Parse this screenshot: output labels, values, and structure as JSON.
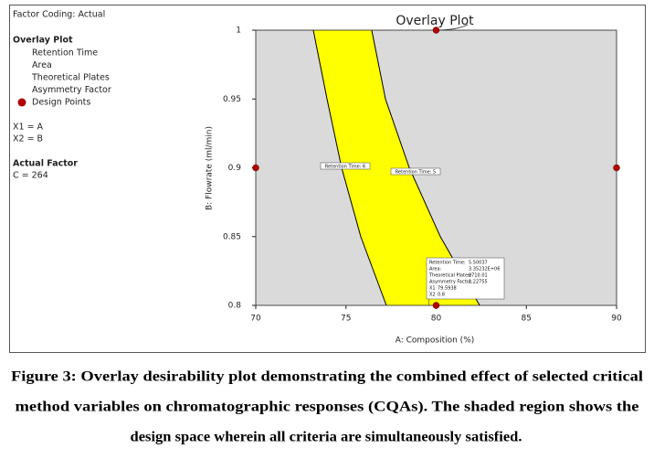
{
  "chart_data": {
    "type": "overlay",
    "title": "Overlay Plot",
    "factor_coding": "Factor Coding: Actual",
    "legend": {
      "title": "Overlay Plot",
      "items": [
        "Retention Time",
        "Area",
        "Theoretical Plates",
        "Asymmetry Factor"
      ]
    },
    "factor_names": [
      "X1 = A",
      "X2 = B"
    ],
    "actual_factor": {
      "title": "Actual Factor",
      "text": "C = 264"
    },
    "xlabel": "A: Composition (%)",
    "ylabel": "B: Flowrate (ml/min)",
    "xlim": [
      70,
      90
    ],
    "ylim": [
      0.8,
      1
    ],
    "xticks": [
      70,
      75,
      80,
      85,
      90
    ],
    "yticks": [
      0.8,
      0.85,
      0.9,
      0.95,
      1
    ],
    "background_color": "#dadada",
    "region_color": "#ffff00",
    "series": [
      {
        "name": "Retention Time: 6",
        "color": "#000000",
        "x": [
          73.19,
          73.95,
          74.76,
          75.82,
          77.24
        ],
        "y": [
          1,
          0.95,
          0.9,
          0.85,
          0.8
        ]
      },
      {
        "name": "Retention Time: 5",
        "color": "#000000",
        "x": [
          76.43,
          77.19,
          78.51,
          80.23,
          82.41
        ],
        "y": [
          1,
          0.95,
          0.9,
          0.85,
          0.8
        ]
      }
    ],
    "design_points": {
      "name": "Design Points",
      "color": "#b00000",
      "x": [
        80,
        70,
        90,
        80
      ],
      "y": [
        1,
        0.9,
        0.9,
        0.8
      ]
    },
    "flag": {
      "labels": [
        "Retention Time:",
        "Area:",
        "Theoretical Plates:",
        "Asymmetry Factor:",
        "X1",
        "X2"
      ],
      "values": [
        5.50037,
        3352320,
        8710.01,
        1.22755,
        79.5938,
        0.8
      ],
      "value_labels": [
        "5.50037",
        "3.35232E+06",
        "8710.01",
        "1.22755",
        "79.5938",
        "0.8"
      ]
    },
    "caption": [
      "Figure 3: Overlay desirability plot demonstrating the combined effect of selected critical",
      "method variables on chromatographic responses (CQAs). The shaded region shows the",
      "design space wherein all criteria are simultaneously satisfied."
    ]
  }
}
